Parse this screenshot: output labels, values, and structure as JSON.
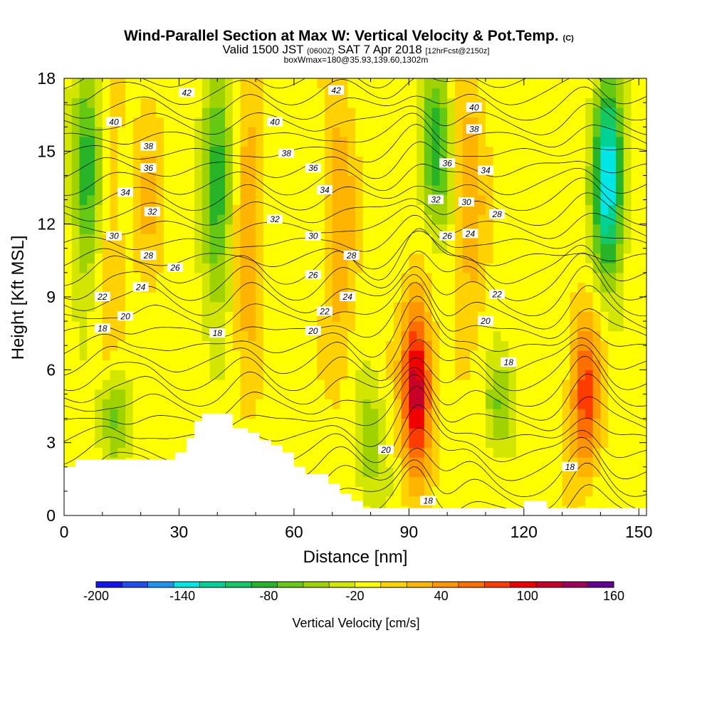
{
  "chart_data": {
    "type": "heatmap",
    "title": "Wind-Parallel Section at Max W: Vertical Velocity & Pot.Temp.",
    "title_suffix": "(C)",
    "subtitle": {
      "valid_prefix": "Valid 1500 JST",
      "utc_time": "(0600Z)",
      "date": "SAT 7 Apr 2018",
      "forecast": "[12hrFcst@2150z]"
    },
    "subtitle2": "boxWmax=180@35.93,139.60,1302m",
    "xlabel": "Distance [nm]",
    "ylabel": "Height [Kft MSL]",
    "xlim": [
      0,
      152
    ],
    "ylim": [
      0,
      18
    ],
    "x_ticks": [
      0,
      30,
      60,
      90,
      120,
      150
    ],
    "y_ticks": [
      0,
      3,
      6,
      9,
      12,
      15,
      18
    ],
    "colorbar": {
      "label": "Vertical Velocity [cm/s]",
      "tick_labels": [
        "-200",
        "-140",
        "-80",
        "-20",
        "40",
        "100",
        "160"
      ],
      "tick_values": [
        -200,
        -140,
        -80,
        -20,
        40,
        100,
        160
      ],
      "range": [
        -200,
        160
      ],
      "bin_width": 20,
      "colors": [
        "#1414f0",
        "#1e50f0",
        "#1e96f0",
        "#00e6e6",
        "#00d296",
        "#14c864",
        "#28b428",
        "#64c814",
        "#a0d200",
        "#d2e600",
        "#ffff00",
        "#ffd200",
        "#ffb400",
        "#ff9600",
        "#ff6e00",
        "#ff3c00",
        "#f00000",
        "#c80028",
        "#a0005a",
        "#640096"
      ]
    },
    "vertical_velocity_features": [
      {
        "kind": "updraft",
        "x": 92,
        "y_range": [
          2,
          8.5
        ],
        "peak_w": 160
      },
      {
        "kind": "updraft",
        "x": 136,
        "y_range": [
          2,
          8
        ],
        "peak_w": 110
      },
      {
        "kind": "updraft",
        "x": 106,
        "y_range": [
          8,
          18
        ],
        "peak_w": 60
      },
      {
        "kind": "updraft",
        "x": 48,
        "y_range": [
          6,
          18
        ],
        "peak_w": 60
      },
      {
        "kind": "updraft",
        "x": 72,
        "y_range": [
          6,
          18
        ],
        "peak_w": 60
      },
      {
        "kind": "updraft",
        "x": 22,
        "y_range": [
          9,
          18
        ],
        "peak_w": 40
      },
      {
        "kind": "updraft",
        "x": 12,
        "y_range": [
          2,
          18
        ],
        "peak_w": 40
      },
      {
        "kind": "downdraft",
        "x": 6,
        "y_range": [
          10,
          18
        ],
        "peak_w": -80
      },
      {
        "kind": "downdraft",
        "x": 40,
        "y_range": [
          9,
          18
        ],
        "peak_w": -80
      },
      {
        "kind": "downdraft",
        "x": 97,
        "y_range": [
          12,
          18
        ],
        "peak_w": -80
      },
      {
        "kind": "downdraft",
        "x": 142,
        "y_range": [
          10,
          18
        ],
        "peak_w": -140
      },
      {
        "kind": "downdraft",
        "x": 13,
        "y_range": [
          2.5,
          6
        ],
        "peak_w": -60
      },
      {
        "kind": "downdraft",
        "x": 114,
        "y_range": [
          3,
          6
        ],
        "peak_w": -40
      },
      {
        "kind": "downdraft",
        "x": 80,
        "y_range": [
          1,
          5
        ],
        "peak_w": -40
      }
    ],
    "potential_temperature_isentropes_C": {
      "interval": 1,
      "range": [
        14,
        43
      ],
      "labels": [
        {
          "text": "42",
          "x": 32,
          "y": 17.4
        },
        {
          "text": "42",
          "x": 71,
          "y": 17.5
        },
        {
          "text": "40",
          "x": 13,
          "y": 16.2
        },
        {
          "text": "40",
          "x": 55,
          "y": 16.2
        },
        {
          "text": "40",
          "x": 107,
          "y": 16.8
        },
        {
          "text": "38",
          "x": 22,
          "y": 15.2
        },
        {
          "text": "38",
          "x": 58,
          "y": 14.9
        },
        {
          "text": "38",
          "x": 107,
          "y": 15.9
        },
        {
          "text": "36",
          "x": 22,
          "y": 14.3
        },
        {
          "text": "36",
          "x": 65,
          "y": 14.3
        },
        {
          "text": "36",
          "x": 100,
          "y": 14.5
        },
        {
          "text": "34",
          "x": 16,
          "y": 13.3
        },
        {
          "text": "34",
          "x": 68,
          "y": 13.4
        },
        {
          "text": "34",
          "x": 110,
          "y": 14.2
        },
        {
          "text": "32",
          "x": 23,
          "y": 12.5
        },
        {
          "text": "32",
          "x": 55,
          "y": 12.2
        },
        {
          "text": "32",
          "x": 97,
          "y": 13.0
        },
        {
          "text": "30",
          "x": 13,
          "y": 11.5
        },
        {
          "text": "30",
          "x": 65,
          "y": 11.5
        },
        {
          "text": "30",
          "x": 105,
          "y": 12.9
        },
        {
          "text": "28",
          "x": 22,
          "y": 10.7
        },
        {
          "text": "28",
          "x": 75,
          "y": 10.7
        },
        {
          "text": "28",
          "x": 113,
          "y": 12.4
        },
        {
          "text": "26",
          "x": 29,
          "y": 10.2
        },
        {
          "text": "26",
          "x": 65,
          "y": 9.9
        },
        {
          "text": "26",
          "x": 100,
          "y": 11.5
        },
        {
          "text": "24",
          "x": 20,
          "y": 9.4
        },
        {
          "text": "24",
          "x": 74,
          "y": 9.0
        },
        {
          "text": "24",
          "x": 106,
          "y": 11.6
        },
        {
          "text": "22",
          "x": 10,
          "y": 9.0
        },
        {
          "text": "22",
          "x": 68,
          "y": 8.4
        },
        {
          "text": "22",
          "x": 113,
          "y": 9.1
        },
        {
          "text": "20",
          "x": 16,
          "y": 8.2
        },
        {
          "text": "20",
          "x": 65,
          "y": 7.6
        },
        {
          "text": "20",
          "x": 110,
          "y": 8.0
        },
        {
          "text": "18",
          "x": 10,
          "y": 7.7
        },
        {
          "text": "18",
          "x": 40,
          "y": 7.5
        },
        {
          "text": "18",
          "x": 116,
          "y": 6.3
        },
        {
          "text": "18",
          "x": 132,
          "y": 2.0
        },
        {
          "text": "18",
          "x": 95,
          "y": 0.6
        },
        {
          "text": "20",
          "x": 84,
          "y": 2.7
        }
      ]
    },
    "terrain_profile": [
      [
        0,
        2.0
      ],
      [
        3,
        2.0
      ],
      [
        3,
        2.3
      ],
      [
        29,
        2.3
      ],
      [
        29,
        2.6
      ],
      [
        32,
        2.6
      ],
      [
        32,
        3.2
      ],
      [
        34,
        3.2
      ],
      [
        34,
        3.9
      ],
      [
        36,
        3.9
      ],
      [
        36,
        4.2
      ],
      [
        44,
        4.2
      ],
      [
        44,
        3.6
      ],
      [
        48,
        3.6
      ],
      [
        48,
        3.4
      ],
      [
        51,
        3.4
      ],
      [
        51,
        3.1
      ],
      [
        54,
        3.1
      ],
      [
        54,
        2.9
      ],
      [
        57,
        2.9
      ],
      [
        57,
        2.6
      ],
      [
        60,
        2.6
      ],
      [
        60,
        2.0
      ],
      [
        63,
        2.0
      ],
      [
        63,
        1.7
      ],
      [
        69,
        1.7
      ],
      [
        69,
        1.3
      ],
      [
        72,
        1.3
      ],
      [
        72,
        0.9
      ],
      [
        75,
        0.9
      ],
      [
        75,
        0.6
      ],
      [
        78,
        0.6
      ],
      [
        78,
        0.3
      ],
      [
        120,
        0.3
      ],
      [
        120,
        0.6
      ],
      [
        126,
        0.6
      ],
      [
        126,
        0.3
      ],
      [
        152,
        0.3
      ]
    ]
  }
}
